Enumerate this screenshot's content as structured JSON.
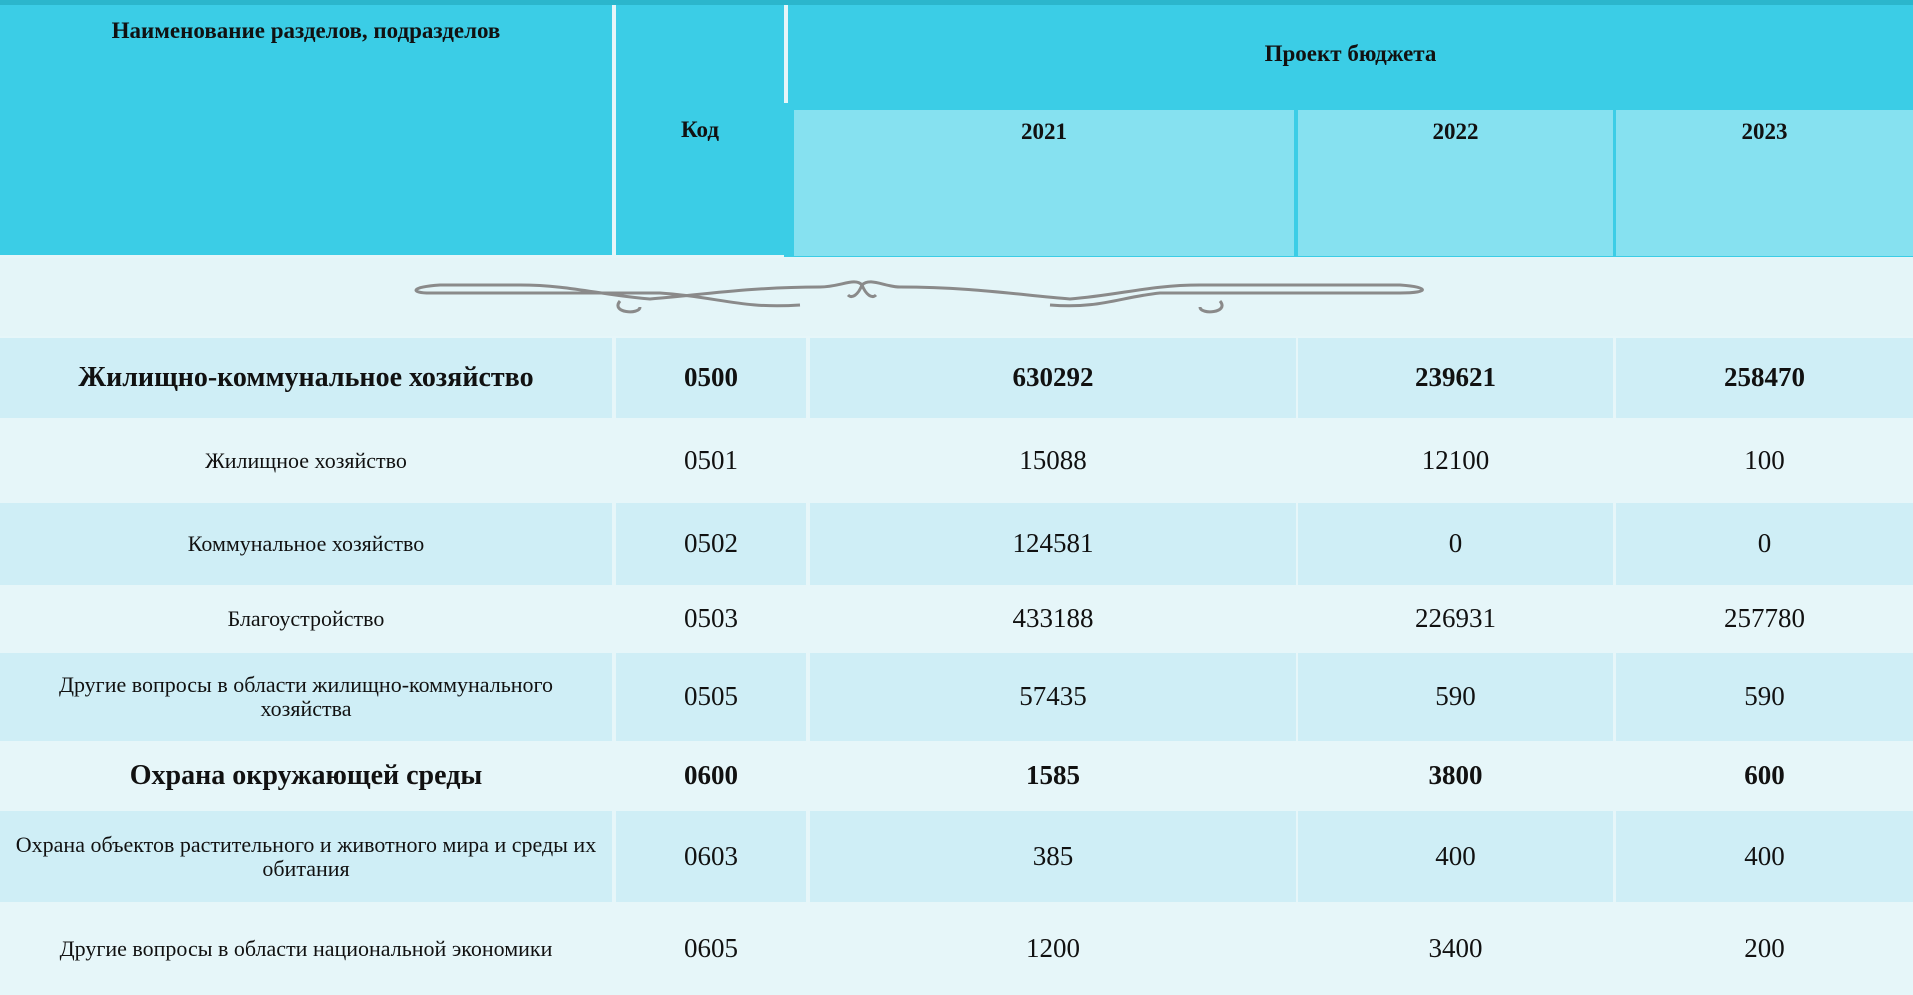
{
  "header": {
    "name_column": "Наименование разделов, подразделов",
    "code_column": "Код",
    "budget_group": "Проект бюджета",
    "years": [
      2021,
      2022,
      2023
    ]
  },
  "table": {
    "rows": [
      [
        "Жилищно-коммунальное хозяйство",
        "0500",
        630292,
        239621,
        258470
      ],
      [
        "Жилищное хозяйство",
        "0501",
        15088,
        12100,
        100
      ],
      [
        "Коммунальное хозяйство",
        "0502",
        124581,
        0,
        0
      ],
      [
        "Благоустройство",
        "0503",
        433188,
        226931,
        257780
      ],
      [
        "Другие вопросы в области жилищно-коммунального хозяйства",
        "0505",
        57435,
        590,
        590
      ],
      [
        "Охрана окружающей среды",
        "0600",
        1585,
        3800,
        600
      ],
      [
        "Охрана объектов растительного и животного мира и среды их обитания",
        "0603",
        385,
        400,
        400
      ],
      [
        "Другие вопросы в области национальной экономики",
        "0605",
        1200,
        3400,
        200
      ]
    ]
  }
}
